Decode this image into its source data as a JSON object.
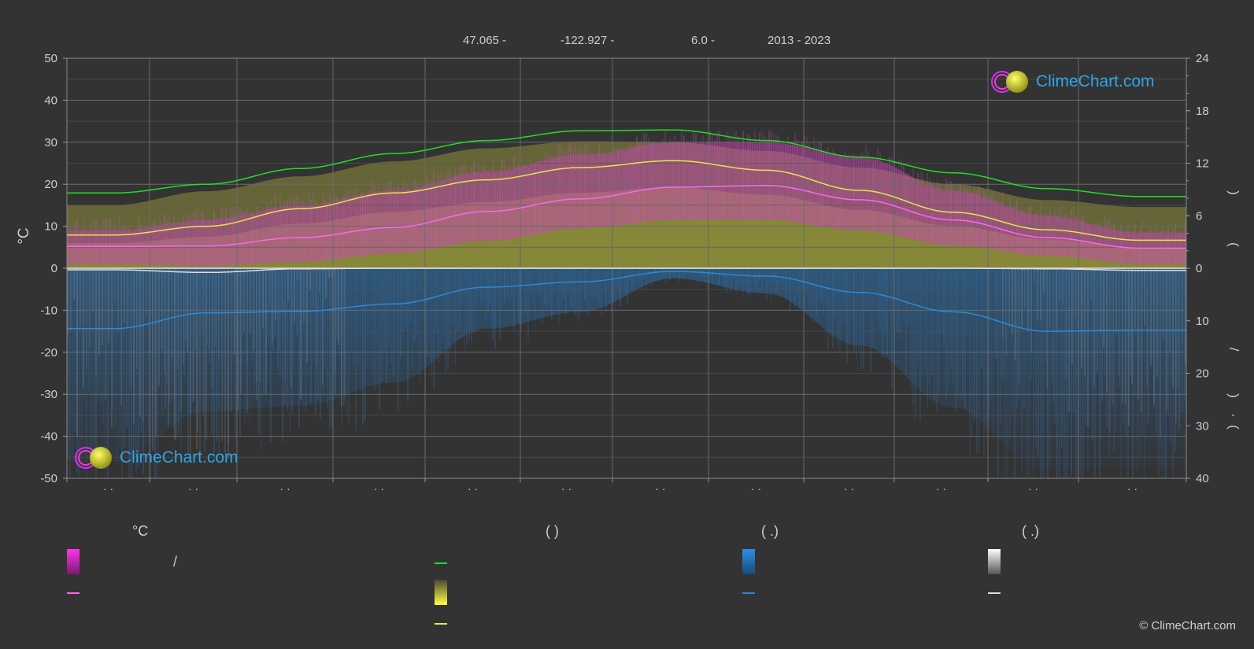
{
  "header": {
    "lat": "47.065 -",
    "lon": "-122.927 -",
    "elev": "6.0 -",
    "years": "2013 - 2023"
  },
  "logo": {
    "text": "ClimeChart.com"
  },
  "copyright": "© ClimeChart.com",
  "legend": {
    "col1_header": "°C",
    "col1_row1_text": "/",
    "col2_header": "(          )",
    "col3_header": "(   .)",
    "col4_header": "(   .)"
  },
  "colors": {
    "background": "#333333",
    "daylight": "#22dd22",
    "sunshine": "#e6e64a",
    "temp_mean": "#ff66ee",
    "temp_range": "#dd44cc",
    "rain": "#2a8ad8",
    "snow": "#dddddd"
  },
  "chart_data": {
    "type": "area",
    "title": "",
    "ylabel": "°C",
    "ylabel_right": "",
    "ylim": [
      -50,
      50
    ],
    "yticks": [
      50,
      40,
      30,
      20,
      10,
      0,
      -10,
      -20,
      -30,
      -40,
      -50
    ],
    "y2lim_top": [
      0,
      24
    ],
    "y2ticks_top": [
      24,
      18,
      12,
      6,
      0
    ],
    "y2lim_bottom": [
      0,
      40
    ],
    "y2ticks_bottom": [
      0,
      10,
      20,
      30,
      40
    ],
    "months": 12,
    "month_labels": [
      "· ·",
      "· ·",
      "· ·",
      "· ·",
      "· ·",
      "· ·",
      "· ·",
      "· ·",
      "· ·",
      "· ·",
      "· ·",
      "· ·"
    ],
    "grid": true,
    "series": [
      {
        "key": "daylight",
        "axis": "hours",
        "values": [
          8.6,
          9.6,
          11.4,
          13.1,
          14.6,
          15.7,
          15.8,
          14.6,
          12.7,
          10.9,
          9.1,
          8.2
        ]
      },
      {
        "key": "sunshine",
        "axis": "hours",
        "values": [
          3.8,
          4.8,
          6.8,
          8.6,
          10.1,
          11.5,
          12.3,
          11.2,
          8.9,
          6.4,
          4.4,
          3.2
        ]
      },
      {
        "key": "sunshine_fill_top",
        "axis": "hours",
        "values": [
          7.2,
          8.8,
          10.5,
          12.2,
          13.7,
          14.5,
          14.4,
          13.4,
          11.5,
          9.6,
          7.8,
          7.0
        ]
      },
      {
        "key": "temp_mean",
        "axis": "temp",
        "values": [
          5.2,
          5.3,
          7.3,
          9.7,
          13.5,
          16.5,
          19.3,
          19.7,
          16.3,
          11.5,
          7.3,
          4.8
        ]
      },
      {
        "key": "temp_max_band",
        "axis": "temp",
        "values": [
          9.0,
          11.5,
          15.0,
          18.5,
          23.0,
          27.0,
          30.0,
          30.0,
          26.5,
          18.5,
          12.5,
          8.5
        ]
      },
      {
        "key": "temp_min_band",
        "axis": "temp",
        "values": [
          1.0,
          0.5,
          1.5,
          3.5,
          6.5,
          9.5,
          11.5,
          11.5,
          9.0,
          5.5,
          3.0,
          1.0
        ]
      },
      {
        "key": "rain",
        "axis": "precip",
        "values": [
          11.5,
          8.5,
          8.2,
          6.8,
          3.6,
          2.6,
          0.6,
          1.5,
          4.6,
          8.3,
          12.0,
          11.8
        ]
      },
      {
        "key": "snow",
        "axis": "precip",
        "values": [
          0.3,
          0.8,
          0.1,
          0.0,
          0.0,
          0.0,
          0.0,
          0.0,
          0.0,
          0.0,
          0.1,
          0.4
        ]
      }
    ]
  }
}
